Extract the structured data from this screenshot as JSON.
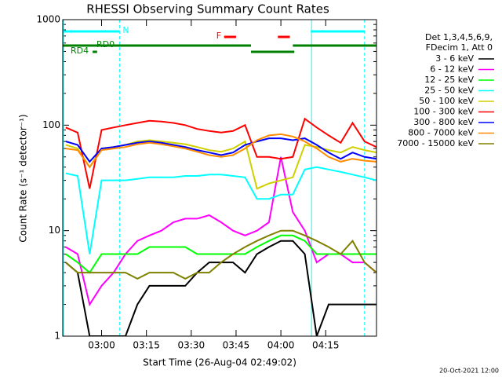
{
  "chart_data": {
    "type": "line",
    "title": "RHESSI Observing Summary Count Rates",
    "xlabel": "Start Time (26-Aug-04 02:49:02)",
    "ylabel": "Count Rate (s⁻¹ detector⁻¹)",
    "footer": "20-Oct-2021 12:00",
    "legend_header": [
      "Det 1,3,4,5,6,9,",
      "FDecim 1, Att 0"
    ],
    "log_y": true,
    "xlim": [
      167,
      272
    ],
    "ylim": [
      1,
      1000
    ],
    "xticks": [
      {
        "value": 180,
        "label": "03:00"
      },
      {
        "value": 195,
        "label": "03:15"
      },
      {
        "value": 210,
        "label": "03:30"
      },
      {
        "value": 225,
        "label": "03:45"
      },
      {
        "value": 240,
        "label": "04:00"
      },
      {
        "value": 255,
        "label": "04:15"
      }
    ],
    "yticks": [
      1,
      10,
      100,
      1000
    ],
    "x": [
      168,
      172,
      176,
      180,
      184,
      188,
      192,
      196,
      200,
      204,
      208,
      212,
      216,
      220,
      224,
      228,
      232,
      236,
      240,
      244,
      248,
      252,
      256,
      260,
      264,
      268,
      272
    ],
    "series": [
      {
        "name": "3 - 6 keV",
        "color": "#000000",
        "values": [
          5,
          4,
          1,
          1,
          1,
          1,
          2,
          3,
          3,
          3,
          3,
          4,
          5,
          5,
          5,
          4,
          6,
          7,
          8,
          8,
          6,
          1,
          2,
          2,
          2,
          2,
          2
        ]
      },
      {
        "name": "6 - 12 keV",
        "color": "#ff00ff",
        "values": [
          7,
          6,
          2,
          3,
          4,
          6,
          8,
          9,
          10,
          12,
          13,
          13,
          14,
          12,
          10,
          9,
          10,
          12,
          50,
          15,
          10,
          5,
          6,
          6,
          5,
          5,
          4
        ]
      },
      {
        "name": "12 - 25 keV",
        "color": "#00ff00",
        "values": [
          6,
          5,
          4,
          6,
          6,
          6,
          6,
          7,
          7,
          7,
          7,
          6,
          6,
          6,
          6,
          6,
          7,
          8,
          9,
          9,
          8,
          6,
          6,
          6,
          6,
          6,
          6
        ]
      },
      {
        "name": "25 - 50 keV",
        "color": "#00ffff",
        "values": [
          35,
          33,
          6,
          30,
          30,
          30,
          31,
          32,
          32,
          32,
          33,
          33,
          34,
          34,
          33,
          32,
          20,
          20,
          22,
          22,
          38,
          40,
          38,
          36,
          34,
          32,
          30
        ]
      },
      {
        "name": "50 - 100 keV",
        "color": "#d0d000",
        "values": [
          65,
          60,
          40,
          60,
          62,
          65,
          70,
          72,
          70,
          68,
          66,
          62,
          58,
          56,
          60,
          70,
          25,
          28,
          30,
          32,
          65,
          62,
          58,
          55,
          62,
          58,
          55
        ]
      },
      {
        "name": "100 - 300 keV",
        "color": "#ff0000",
        "values": [
          95,
          85,
          25,
          90,
          95,
          100,
          105,
          110,
          108,
          105,
          100,
          92,
          88,
          85,
          88,
          100,
          50,
          50,
          48,
          50,
          115,
          95,
          80,
          68,
          105,
          70,
          62
        ]
      },
      {
        "name": "300 - 800 keV",
        "color": "#0000ff",
        "values": [
          70,
          65,
          45,
          60,
          62,
          65,
          68,
          70,
          68,
          65,
          62,
          58,
          55,
          52,
          55,
          65,
          70,
          75,
          75,
          72,
          75,
          65,
          55,
          48,
          55,
          50,
          48
        ]
      },
      {
        "name": "800 - 7000 keV",
        "color": "#ff8c00",
        "values": [
          60,
          58,
          40,
          58,
          60,
          62,
          66,
          68,
          66,
          63,
          60,
          56,
          52,
          50,
          52,
          60,
          72,
          80,
          82,
          78,
          70,
          60,
          50,
          45,
          48,
          46,
          45
        ]
      },
      {
        "name": "7000 - 15000 keV",
        "color": "#808000",
        "values": [
          5,
          4,
          4,
          4,
          4,
          4,
          3.5,
          4,
          4,
          4,
          3.5,
          4,
          4,
          5,
          6,
          7,
          8,
          9,
          10,
          10,
          9,
          8,
          7,
          6,
          8,
          5,
          4
        ]
      }
    ],
    "flags": [
      {
        "label": "N",
        "color": "#00ffff",
        "segments": [
          [
            167,
            186
          ],
          [
            250,
            268
          ]
        ]
      },
      {
        "label": "F",
        "color": "#ff0000",
        "segments": [
          [
            221,
            225
          ],
          [
            239,
            243
          ]
        ]
      },
      {
        "label": "RD0",
        "color": "#008000",
        "segments": [
          [
            167,
            230
          ],
          [
            244,
            272
          ]
        ]
      },
      {
        "label": "RD4",
        "color": "#008000",
        "segments": [
          [
            177,
            178.5
          ],
          [
            230,
            244.5
          ]
        ]
      }
    ]
  }
}
